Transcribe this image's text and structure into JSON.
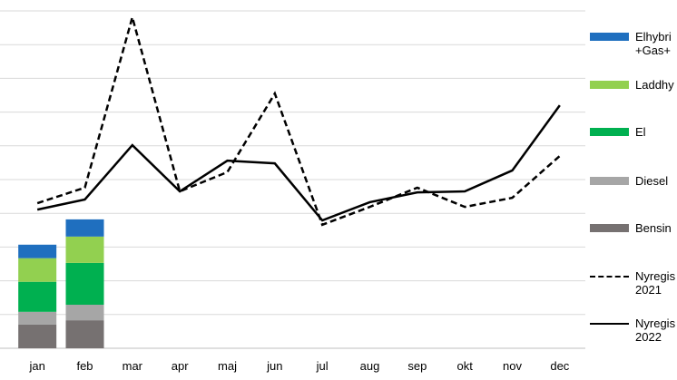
{
  "chart_data": {
    "type": "bar",
    "categories": [
      "jan",
      "feb",
      "mar",
      "apr",
      "maj",
      "jun",
      "jul",
      "aug",
      "sep",
      "okt",
      "nov",
      "dec"
    ],
    "ylim": [
      0,
      10
    ],
    "yticks": [
      0,
      1,
      2,
      3,
      4,
      5,
      6,
      7,
      8,
      9,
      10
    ],
    "grid": true,
    "series": [
      {
        "name": "Bensin",
        "type": "bar",
        "color": "#767171",
        "values": [
          0.7,
          0.83,
          null,
          null,
          null,
          null,
          null,
          null,
          null,
          null,
          null,
          null
        ]
      },
      {
        "name": "Diesel",
        "type": "bar",
        "color": "#a6a6a6",
        "values": [
          0.38,
          0.46,
          null,
          null,
          null,
          null,
          null,
          null,
          null,
          null,
          null,
          null
        ]
      },
      {
        "name": "El",
        "type": "bar",
        "color": "#00b050",
        "values": [
          0.89,
          1.24,
          null,
          null,
          null,
          null,
          null,
          null,
          null,
          null,
          null,
          null
        ]
      },
      {
        "name": "Laddhy",
        "type": "bar",
        "color": "#92d050",
        "values": [
          0.7,
          0.78,
          null,
          null,
          null,
          null,
          null,
          null,
          null,
          null,
          null,
          null
        ]
      },
      {
        "name": "Elhybri\n+Gas+",
        "type": "bar",
        "color": "#1f6fbf",
        "values": [
          0.4,
          0.51,
          null,
          null,
          null,
          null,
          null,
          null,
          null,
          null,
          null,
          null
        ]
      },
      {
        "name": "Nyregis\n2021",
        "type": "line",
        "dashed": true,
        "color": "#000000",
        "values": [
          4.3,
          4.76,
          9.81,
          4.65,
          5.22,
          7.55,
          3.66,
          4.19,
          4.76,
          4.19,
          4.46,
          5.7
        ]
      },
      {
        "name": "Nyregis\n2022",
        "type": "line",
        "dashed": false,
        "color": "#000000",
        "values": [
          4.11,
          4.41,
          6.02,
          4.65,
          5.56,
          5.48,
          3.79,
          4.33,
          4.62,
          4.65,
          5.27,
          7.2
        ]
      }
    ]
  }
}
